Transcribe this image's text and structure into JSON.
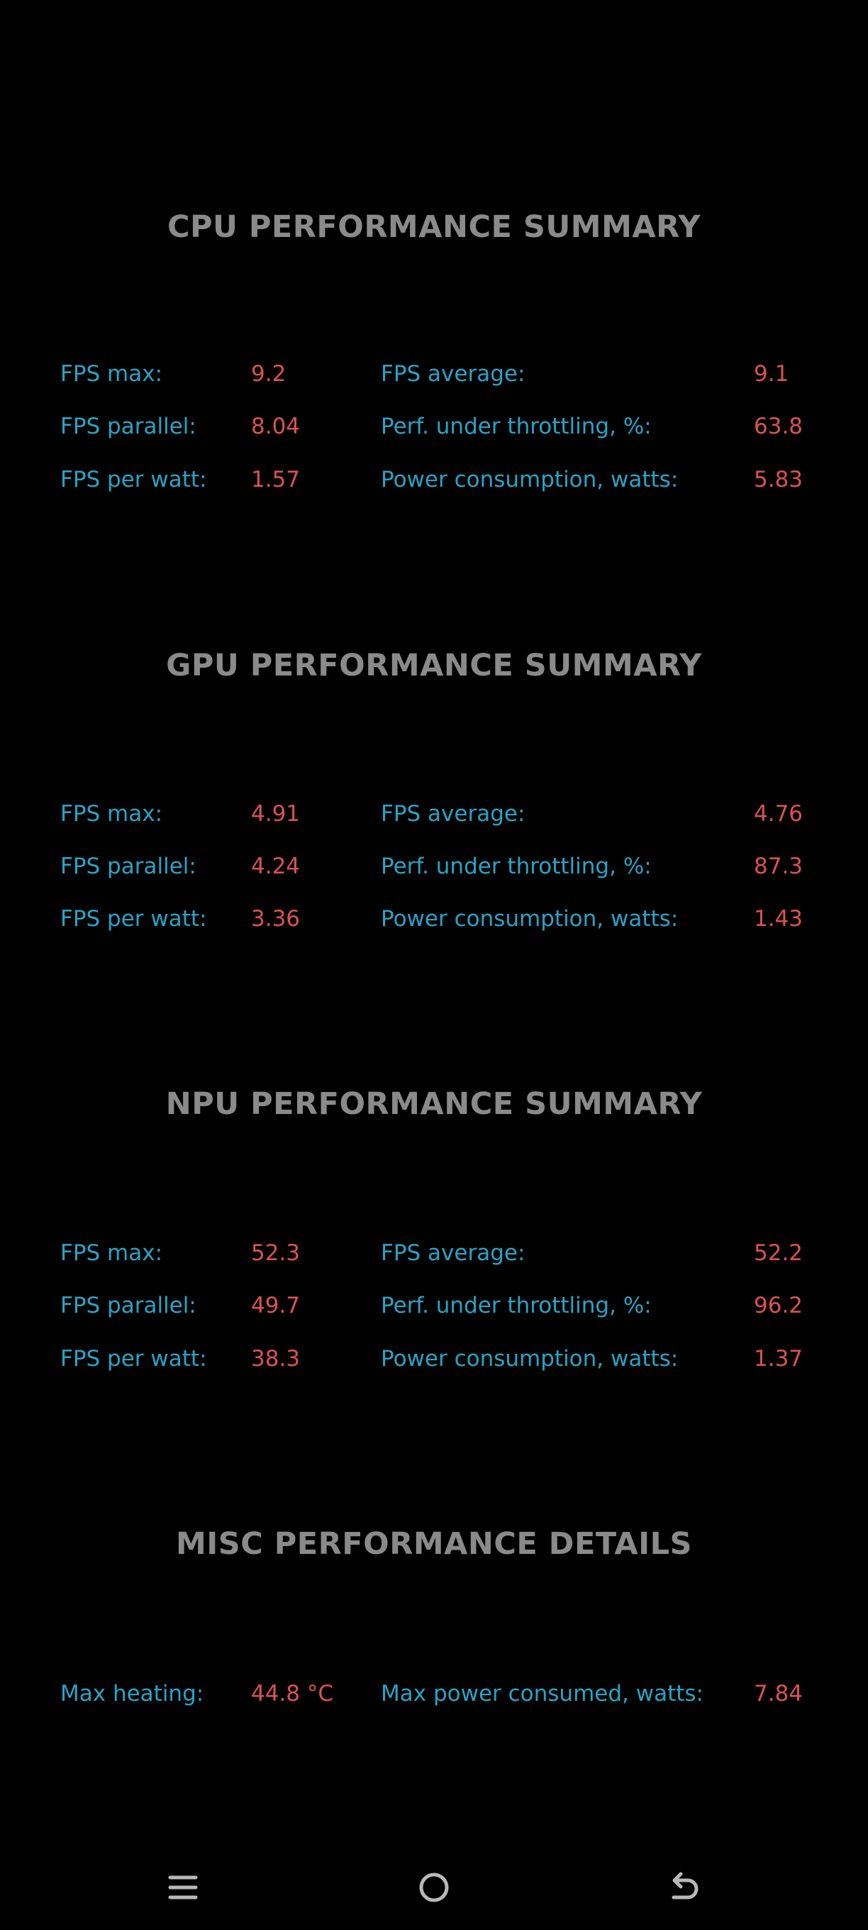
{
  "colors": {
    "background": "#000000",
    "title": "#8a8a8a",
    "label": "#2aa3c4",
    "value": "#d9534f"
  },
  "cpu": {
    "title": "CPU PERFORMANCE SUMMARY",
    "rows": [
      {
        "label_left": "FPS max:",
        "value_left": "9.2",
        "label_right": "FPS average:",
        "value_right": "9.1"
      },
      {
        "label_left": "FPS parallel:",
        "value_left": "8.04",
        "label_right": "Perf. under throttling, %:",
        "value_right": "63.8"
      },
      {
        "label_left": "FPS per watt:",
        "value_left": "1.57",
        "label_right": "Power consumption, watts:",
        "value_right": "5.83"
      }
    ]
  },
  "gpu": {
    "title": "GPU PERFORMANCE SUMMARY",
    "rows": [
      {
        "label_left": "FPS max:",
        "value_left": "4.91",
        "label_right": "FPS average:",
        "value_right": "4.76"
      },
      {
        "label_left": "FPS parallel:",
        "value_left": "4.24",
        "label_right": "Perf. under throttling, %:",
        "value_right": "87.3"
      },
      {
        "label_left": "FPS per watt:",
        "value_left": "3.36",
        "label_right": "Power consumption, watts:",
        "value_right": "1.43"
      }
    ]
  },
  "npu": {
    "title": "NPU PERFORMANCE SUMMARY",
    "rows": [
      {
        "label_left": "FPS max:",
        "value_left": "52.3",
        "label_right": "FPS average:",
        "value_right": "52.2"
      },
      {
        "label_left": "FPS parallel:",
        "value_left": "49.7",
        "label_right": "Perf. under throttling, %:",
        "value_right": "96.2"
      },
      {
        "label_left": "FPS per watt:",
        "value_left": "38.3",
        "label_right": "Power consumption, watts:",
        "value_right": "1.37"
      }
    ]
  },
  "misc": {
    "title": "MISC PERFORMANCE DETAILS",
    "rows": [
      {
        "label_left": "Max heating:",
        "value_left": "44.8 °C",
        "label_right": "Max power consumed, watts:",
        "value_right": "7.84"
      }
    ]
  },
  "navbar": {
    "icons": [
      "menu-icon",
      "home-icon",
      "back-icon"
    ]
  }
}
